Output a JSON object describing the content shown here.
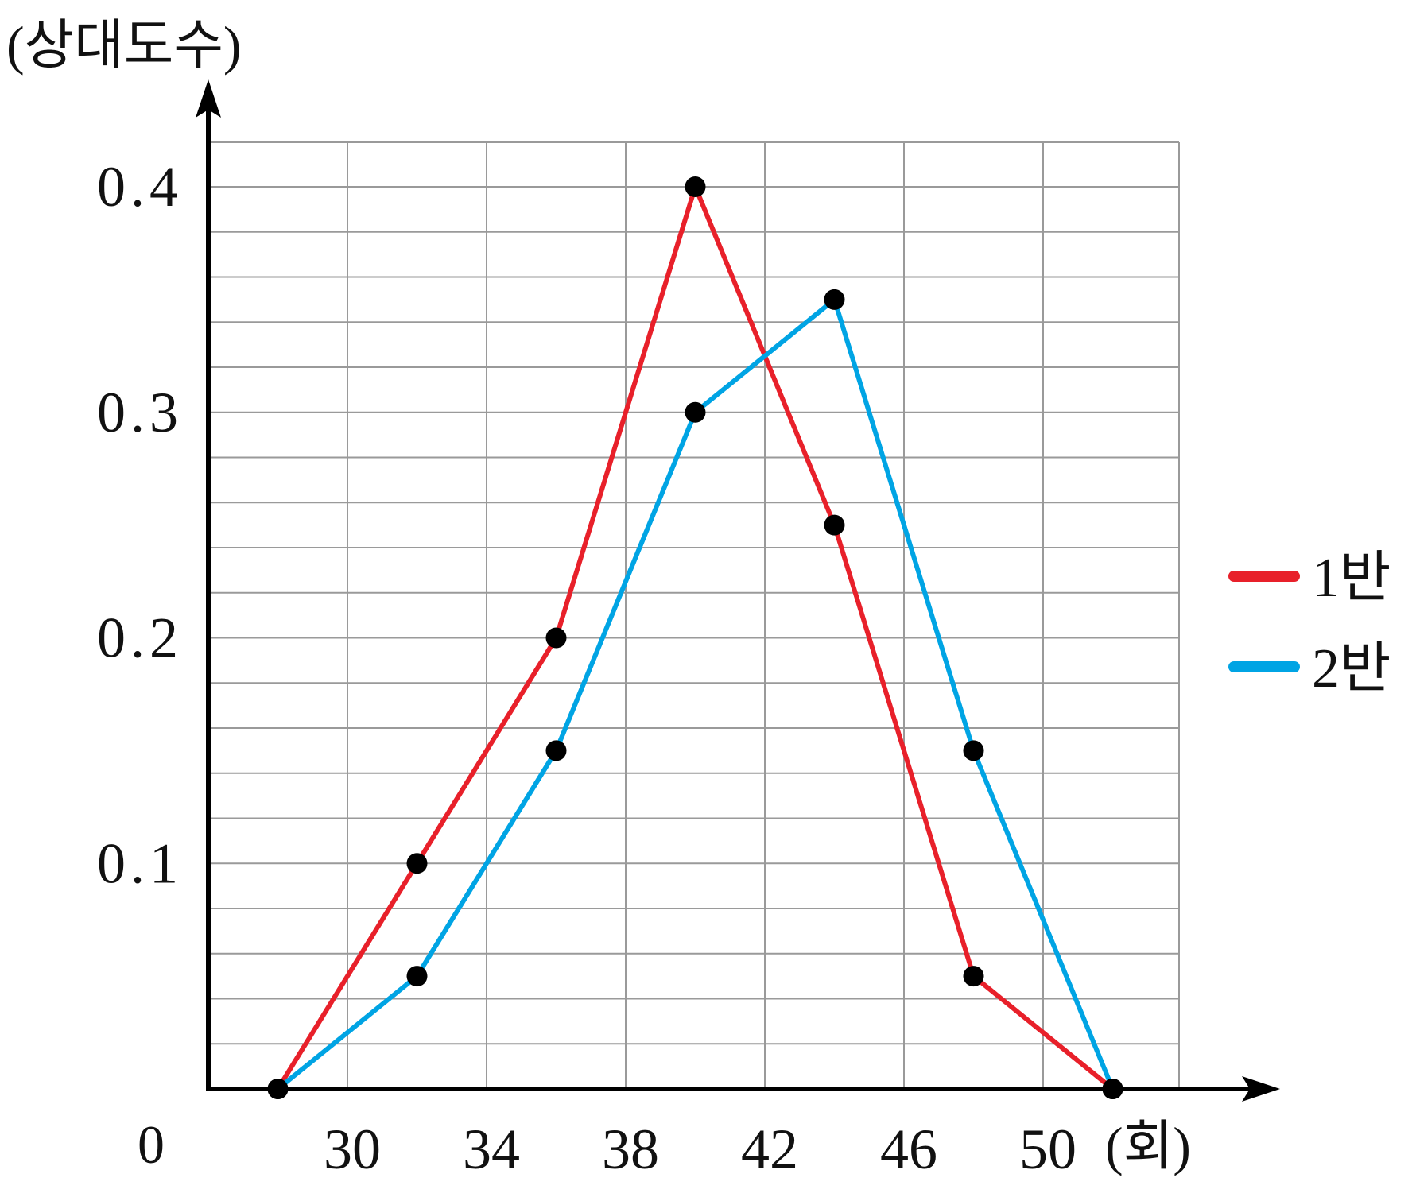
{
  "chart_data": {
    "type": "line",
    "ylabel": "(상대도수)",
    "xlabel": "(회)",
    "origin_label": "0",
    "x_tick_labels": [
      "30",
      "34",
      "38",
      "42",
      "46",
      "50"
    ],
    "y_tick_labels": [
      "0.1",
      "0.2",
      "0.3",
      "0.4"
    ],
    "xlim": [
      26,
      52
    ],
    "ylim": [
      0,
      0.42
    ],
    "grid": true,
    "legend_position": "right",
    "x": [
      28,
      32,
      36,
      40,
      44,
      48,
      52
    ],
    "series": [
      {
        "name": "1반",
        "color": "#e8202a",
        "values": [
          0,
          0.1,
          0.2,
          0.4,
          0.25,
          0.05,
          0
        ]
      },
      {
        "name": "2반",
        "color": "#00a4e4",
        "values": [
          0,
          0.05,
          0.15,
          0.3,
          0.35,
          0.15,
          0
        ]
      }
    ]
  }
}
